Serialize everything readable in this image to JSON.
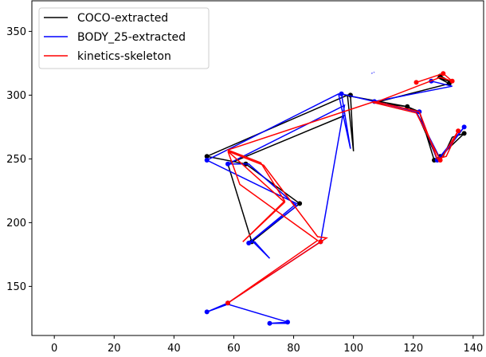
{
  "chart_data": {
    "type": "line",
    "title": "",
    "xlabel": "",
    "ylabel": "",
    "xlim": [
      -7.5,
      143.5
    ],
    "ylim": [
      111.5,
      374
    ],
    "xticks": [
      0,
      20,
      40,
      60,
      80,
      100,
      120,
      140
    ],
    "yticks": [
      150,
      200,
      250,
      300,
      350
    ],
    "grid": false,
    "legend_position": "top-left",
    "series": [
      {
        "name": "COCO-extracted",
        "color": "#000000",
        "points": [
          [
            129,
            315
          ],
          [
            133,
            310
          ],
          [
            128,
            314
          ],
          [
            132,
            309
          ],
          [
            107,
            294
          ],
          [
            118,
            291
          ],
          [
            122,
            287
          ],
          [
            127,
            249
          ],
          [
            129,
            252
          ],
          [
            137,
            270
          ],
          [
            133,
            267
          ],
          [
            130,
            252
          ],
          [
            128,
            250
          ],
          [
            121,
            287
          ],
          [
            118,
            291
          ],
          [
            97,
            300
          ],
          [
            99,
            300
          ],
          [
            100,
            256
          ],
          [
            98,
            300
          ],
          [
            51,
            252
          ],
          [
            64,
            246
          ],
          [
            82,
            215
          ],
          [
            66,
            185
          ],
          [
            58,
            246
          ],
          [
            97,
            284
          ]
        ],
        "markers": [
          [
            129,
            315
          ],
          [
            132,
            309
          ],
          [
            118,
            291
          ],
          [
            127,
            249
          ],
          [
            129,
            252
          ],
          [
            137,
            270
          ],
          [
            99,
            300
          ],
          [
            51,
            252
          ],
          [
            64,
            246
          ],
          [
            82,
            215
          ],
          [
            66,
            185
          ]
        ]
      },
      {
        "name": "BODY_25-extracted",
        "color": "#0000ff",
        "points": [
          [
            126,
            311
          ],
          [
            133,
            307
          ],
          [
            107,
            295
          ],
          [
            122,
            287
          ],
          [
            128,
            249
          ],
          [
            137,
            275
          ],
          [
            129,
            250
          ],
          [
            121,
            287
          ],
          [
            107,
            295
          ],
          [
            96,
            301
          ],
          [
            99,
            258
          ],
          [
            95,
            301
          ],
          [
            51,
            249
          ],
          [
            72,
            225
          ],
          [
            81,
            215
          ],
          [
            65,
            184
          ],
          [
            67,
            185
          ],
          [
            72,
            172
          ],
          [
            66,
            186
          ],
          [
            81,
            213
          ],
          [
            65,
            246
          ],
          [
            58,
            246
          ],
          [
            97,
            292
          ],
          [
            89,
            185
          ],
          [
            58,
            137
          ],
          [
            51,
            130
          ],
          [
            58,
            136
          ],
          [
            78,
            122
          ],
          [
            72,
            121
          ],
          [
            78,
            121
          ]
        ],
        "markers": [
          [
            126,
            311
          ],
          [
            107,
            295
          ],
          [
            122,
            287
          ],
          [
            128,
            249
          ],
          [
            137,
            275
          ],
          [
            96,
            301
          ],
          [
            51,
            249
          ],
          [
            65,
            184
          ],
          [
            58,
            246
          ],
          [
            89,
            185
          ],
          [
            58,
            137
          ],
          [
            51,
            130
          ],
          [
            78,
            122
          ],
          [
            72,
            121
          ]
        ]
      },
      {
        "name": "kinetics-skeleton",
        "color": "#ff0000",
        "points": [
          [
            121,
            310
          ],
          [
            130,
            317
          ],
          [
            133,
            311
          ],
          [
            129,
            314
          ],
          [
            107,
            294
          ],
          [
            121,
            286
          ],
          [
            129,
            249
          ],
          [
            135,
            272
          ],
          [
            131,
            252
          ],
          [
            128,
            250
          ],
          [
            122,
            287
          ],
          [
            107,
            295
          ],
          [
            58,
            257
          ],
          [
            69,
            247
          ],
          [
            77,
            217
          ],
          [
            63,
            185
          ],
          [
            77,
            216
          ],
          [
            58,
            256
          ],
          [
            70,
            245
          ],
          [
            88,
            189
          ],
          [
            91,
            188
          ],
          [
            58,
            137
          ],
          [
            88,
            186
          ],
          [
            62,
            230
          ],
          [
            58,
            256
          ]
        ],
        "markers": [
          [
            121,
            310
          ],
          [
            130,
            317
          ],
          [
            133,
            311
          ],
          [
            129,
            249
          ],
          [
            135,
            272
          ],
          [
            89,
            185
          ],
          [
            58,
            137
          ]
        ]
      }
    ],
    "stray_marks": [
      {
        "color": "#0000ff",
        "points": [
          [
            106,
            317
          ],
          [
            107,
            318
          ]
        ]
      }
    ]
  }
}
